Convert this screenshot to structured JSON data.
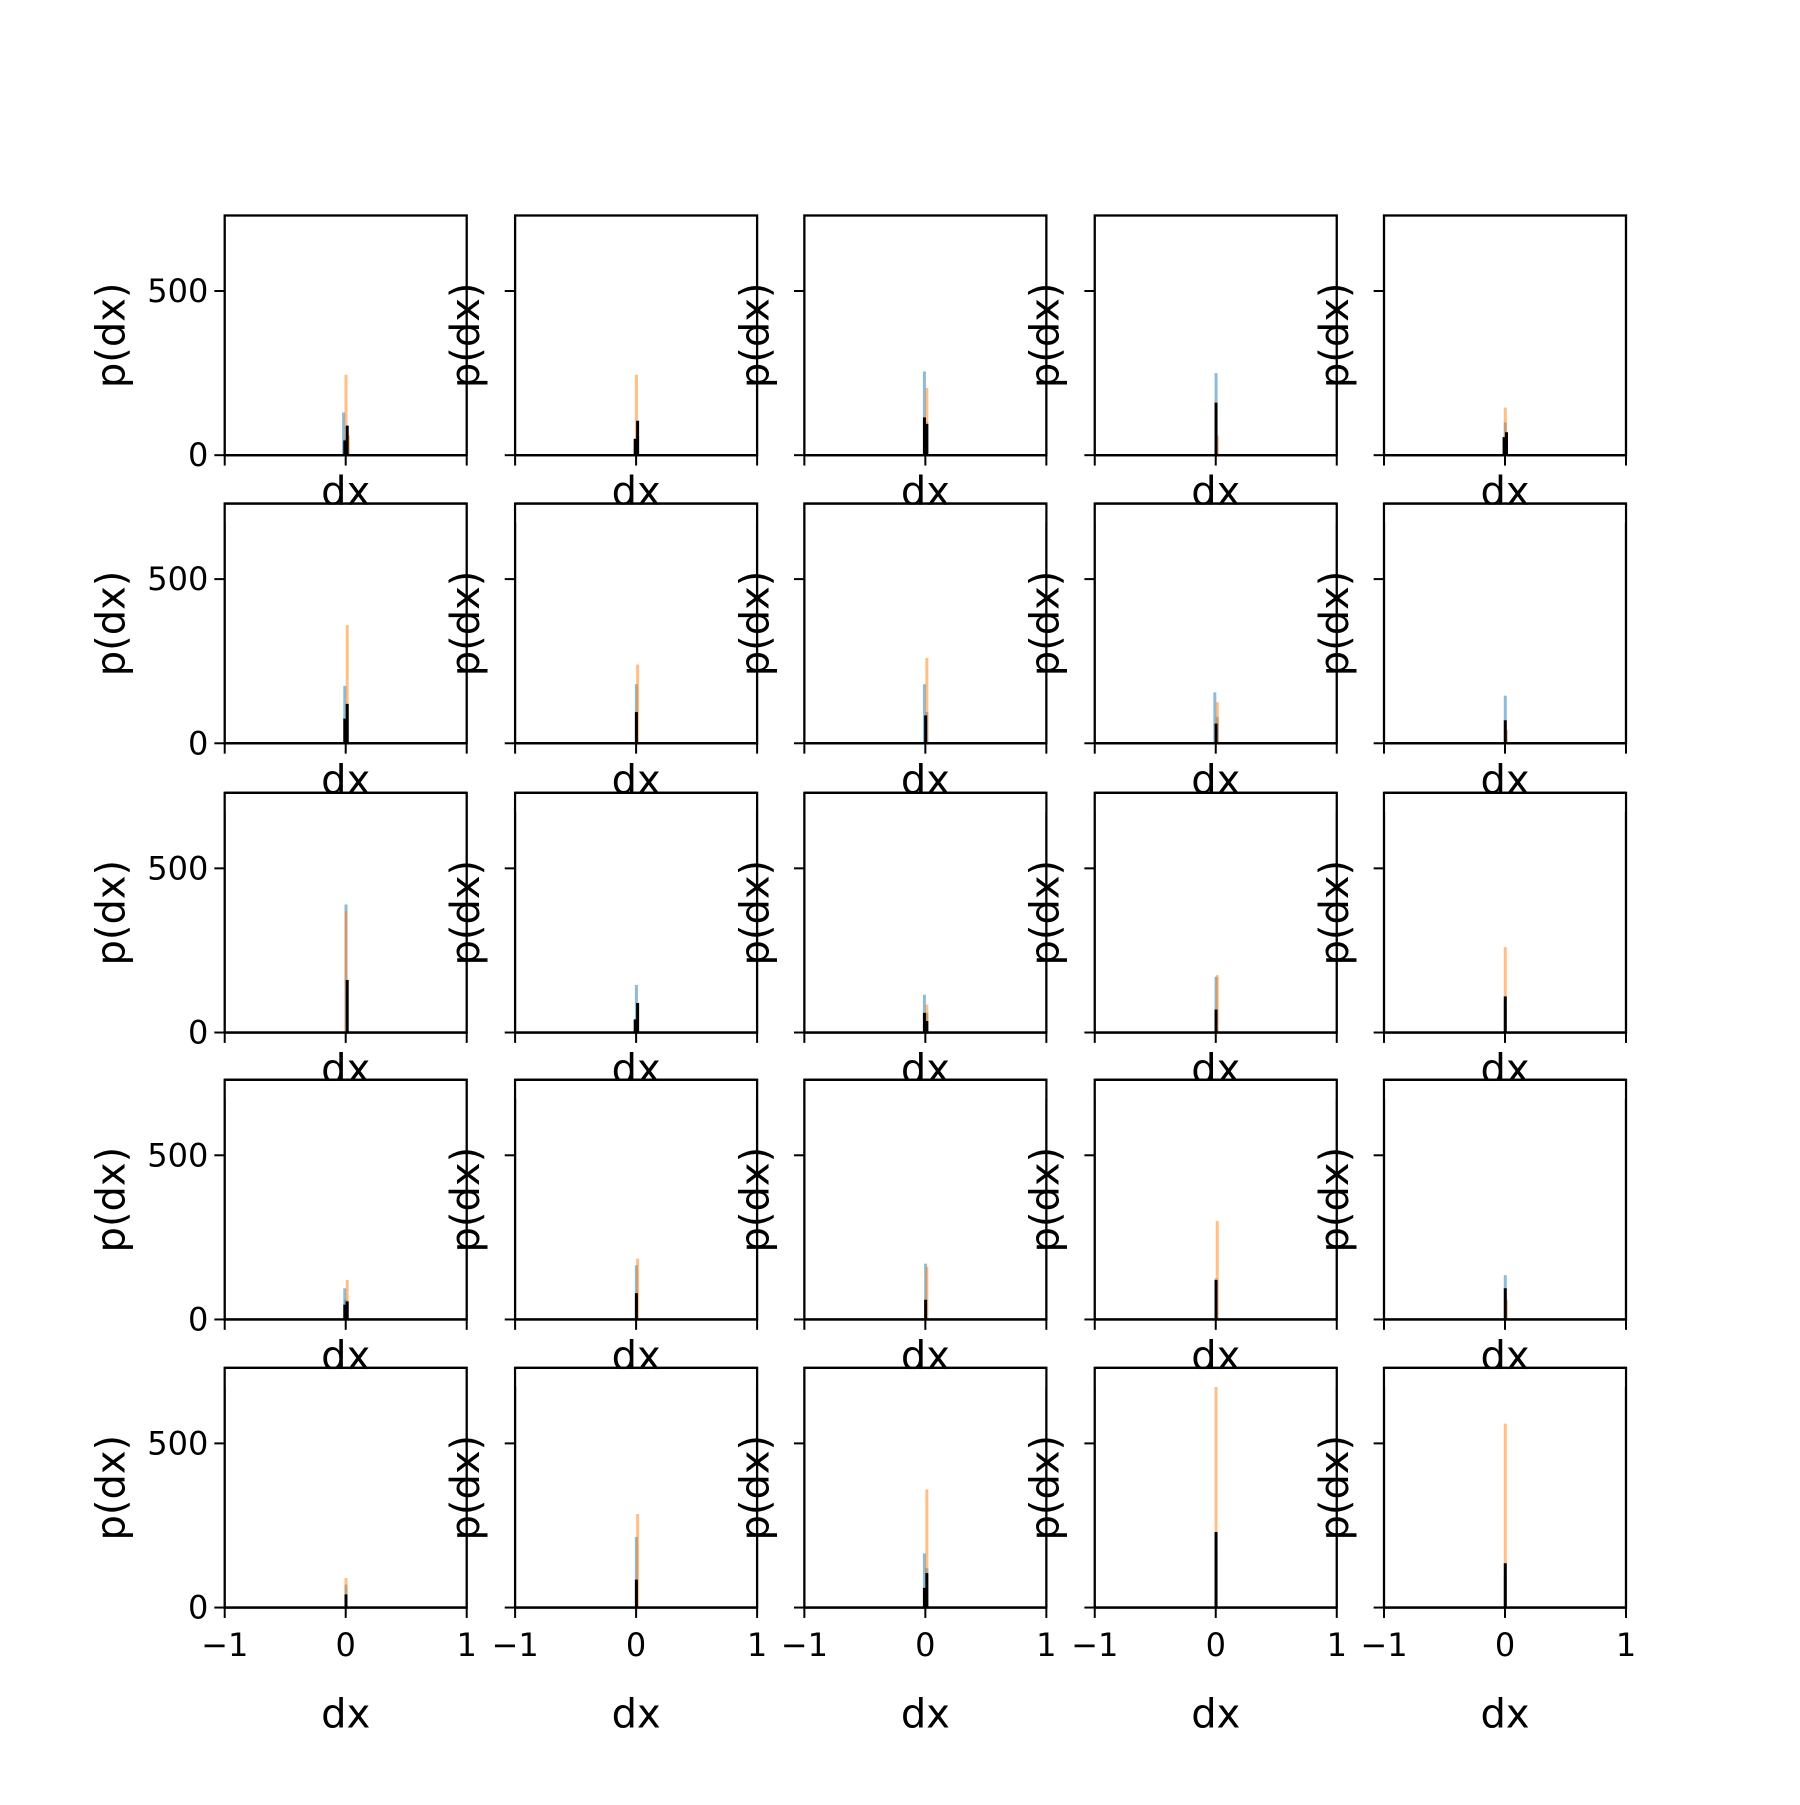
{
  "chart_data": {
    "type": "histogram-grid",
    "rows": 5,
    "cols": 5,
    "xlabel": "dx",
    "ylabel": "p(dx)",
    "xlim": [
      -1,
      1
    ],
    "ylim": [
      0,
      730
    ],
    "xticks": [
      -1,
      0,
      1
    ],
    "yticks": [
      0,
      500
    ],
    "x_tick_labels": [
      "−1",
      "0",
      "1"
    ],
    "y_tick_labels": [
      "0",
      "500"
    ],
    "grid": false,
    "legend": "none",
    "series_colors": {
      "blue": "#1f77b4",
      "orange": "#ff7f0e",
      "black": "#000000"
    },
    "panels": [
      {
        "row": 0,
        "col": 0,
        "blue": [
          [
            -0.02,
            130
          ],
          [
            0.0,
            50
          ]
        ],
        "orange": [
          [
            0.0,
            245
          ],
          [
            0.02,
            60
          ]
        ],
        "black": [
          [
            -0.01,
            45
          ],
          [
            0.01,
            90
          ]
        ]
      },
      {
        "row": 0,
        "col": 1,
        "blue": [
          [
            -0.01,
            40
          ],
          [
            0.01,
            60
          ]
        ],
        "orange": [
          [
            0.0,
            245
          ]
        ],
        "black": [
          [
            -0.01,
            50
          ],
          [
            0.01,
            105
          ]
        ]
      },
      {
        "row": 0,
        "col": 2,
        "blue": [
          [
            -0.01,
            255
          ],
          [
            0.01,
            100
          ]
        ],
        "orange": [
          [
            0.01,
            205
          ]
        ],
        "black": [
          [
            -0.01,
            115
          ],
          [
            0.01,
            95
          ]
        ]
      },
      {
        "row": 0,
        "col": 3,
        "blue": [
          [
            0.0,
            250
          ]
        ],
        "orange": [
          [
            0.01,
            60
          ]
        ],
        "black": [
          [
            0.0,
            160
          ]
        ]
      },
      {
        "row": 0,
        "col": 4,
        "blue": [
          [
            0.0,
            100
          ]
        ],
        "orange": [
          [
            0.0,
            145
          ]
        ],
        "black": [
          [
            -0.01,
            55
          ],
          [
            0.01,
            70
          ]
        ]
      },
      {
        "row": 1,
        "col": 0,
        "blue": [
          [
            -0.01,
            175
          ],
          [
            0.01,
            100
          ]
        ],
        "orange": [
          [
            0.01,
            360
          ]
        ],
        "black": [
          [
            -0.01,
            75
          ],
          [
            0.01,
            120
          ]
        ]
      },
      {
        "row": 1,
        "col": 1,
        "blue": [
          [
            0.0,
            180
          ]
        ],
        "orange": [
          [
            0.01,
            240
          ]
        ],
        "black": [
          [
            0.0,
            95
          ]
        ]
      },
      {
        "row": 1,
        "col": 2,
        "blue": [
          [
            -0.01,
            180
          ],
          [
            0.01,
            95
          ]
        ],
        "orange": [
          [
            0.01,
            260
          ]
        ],
        "black": [
          [
            0.0,
            85
          ]
        ]
      },
      {
        "row": 1,
        "col": 3,
        "blue": [
          [
            -0.01,
            155
          ],
          [
            0.01,
            80
          ]
        ],
        "orange": [
          [
            0.01,
            125
          ]
        ],
        "black": [
          [
            0.0,
            60
          ]
        ]
      },
      {
        "row": 1,
        "col": 4,
        "blue": [
          [
            0.0,
            145
          ]
        ],
        "orange": [
          [
            0.01,
            40
          ]
        ],
        "black": [
          [
            0.0,
            70
          ]
        ]
      },
      {
        "row": 2,
        "col": 0,
        "blue": [
          [
            0.0,
            390
          ]
        ],
        "orange": [
          [
            0.0,
            370
          ]
        ],
        "black": [
          [
            0.01,
            160
          ]
        ]
      },
      {
        "row": 2,
        "col": 1,
        "blue": [
          [
            0.0,
            145
          ]
        ],
        "orange": [
          [
            0.01,
            85
          ]
        ],
        "black": [
          [
            -0.01,
            40
          ],
          [
            0.01,
            90
          ]
        ]
      },
      {
        "row": 2,
        "col": 2,
        "blue": [
          [
            -0.01,
            115
          ],
          [
            0.01,
            60
          ]
        ],
        "orange": [
          [
            0.01,
            85
          ]
        ],
        "black": [
          [
            -0.01,
            60
          ],
          [
            0.01,
            35
          ]
        ]
      },
      {
        "row": 2,
        "col": 3,
        "blue": [
          [
            0.0,
            170
          ]
        ],
        "orange": [
          [
            0.01,
            175
          ]
        ],
        "black": [
          [
            0.0,
            70
          ]
        ]
      },
      {
        "row": 2,
        "col": 4,
        "blue": [
          [
            0.0,
            90
          ]
        ],
        "orange": [
          [
            0.0,
            260
          ]
        ],
        "black": [
          [
            0.0,
            110
          ]
        ]
      },
      {
        "row": 3,
        "col": 0,
        "blue": [
          [
            -0.01,
            95
          ],
          [
            0.0,
            60
          ]
        ],
        "orange": [
          [
            0.01,
            120
          ]
        ],
        "black": [
          [
            -0.01,
            45
          ],
          [
            0.01,
            55
          ]
        ]
      },
      {
        "row": 3,
        "col": 1,
        "blue": [
          [
            0.0,
            165
          ]
        ],
        "orange": [
          [
            0.01,
            185
          ]
        ],
        "black": [
          [
            0.0,
            80
          ]
        ]
      },
      {
        "row": 3,
        "col": 2,
        "blue": [
          [
            0.0,
            170
          ]
        ],
        "orange": [
          [
            0.01,
            160
          ]
        ],
        "black": [
          [
            0.0,
            60
          ]
        ]
      },
      {
        "row": 3,
        "col": 3,
        "blue": [
          [
            0.0,
            125
          ]
        ],
        "orange": [
          [
            0.01,
            300
          ]
        ],
        "black": [
          [
            0.0,
            120
          ]
        ]
      },
      {
        "row": 3,
        "col": 4,
        "blue": [
          [
            0.0,
            135
          ]
        ],
        "orange": [
          [
            0.01,
            60
          ]
        ],
        "black": [
          [
            0.0,
            95
          ]
        ]
      },
      {
        "row": 4,
        "col": 0,
        "blue": [
          [
            0.0,
            70
          ]
        ],
        "orange": [
          [
            0.0,
            90
          ]
        ],
        "black": [
          [
            0.0,
            40
          ]
        ]
      },
      {
        "row": 4,
        "col": 1,
        "blue": [
          [
            0.0,
            215
          ]
        ],
        "orange": [
          [
            0.01,
            285
          ]
        ],
        "black": [
          [
            0.0,
            85
          ]
        ]
      },
      {
        "row": 4,
        "col": 2,
        "blue": [
          [
            -0.01,
            165
          ],
          [
            0.01,
            120
          ]
        ],
        "orange": [
          [
            0.01,
            360
          ]
        ],
        "black": [
          [
            -0.01,
            60
          ],
          [
            0.01,
            105
          ]
        ]
      },
      {
        "row": 4,
        "col": 3,
        "blue": [
          [
            0.0,
            160
          ]
        ],
        "orange": [
          [
            0.0,
            690
          ]
        ],
        "black": [
          [
            0.0,
            230
          ]
        ]
      },
      {
        "row": 4,
        "col": 4,
        "blue": [
          [
            0.0,
            95
          ]
        ],
        "orange": [
          [
            0.0,
            560
          ]
        ],
        "black": [
          [
            0.0,
            135
          ]
        ]
      }
    ]
  }
}
